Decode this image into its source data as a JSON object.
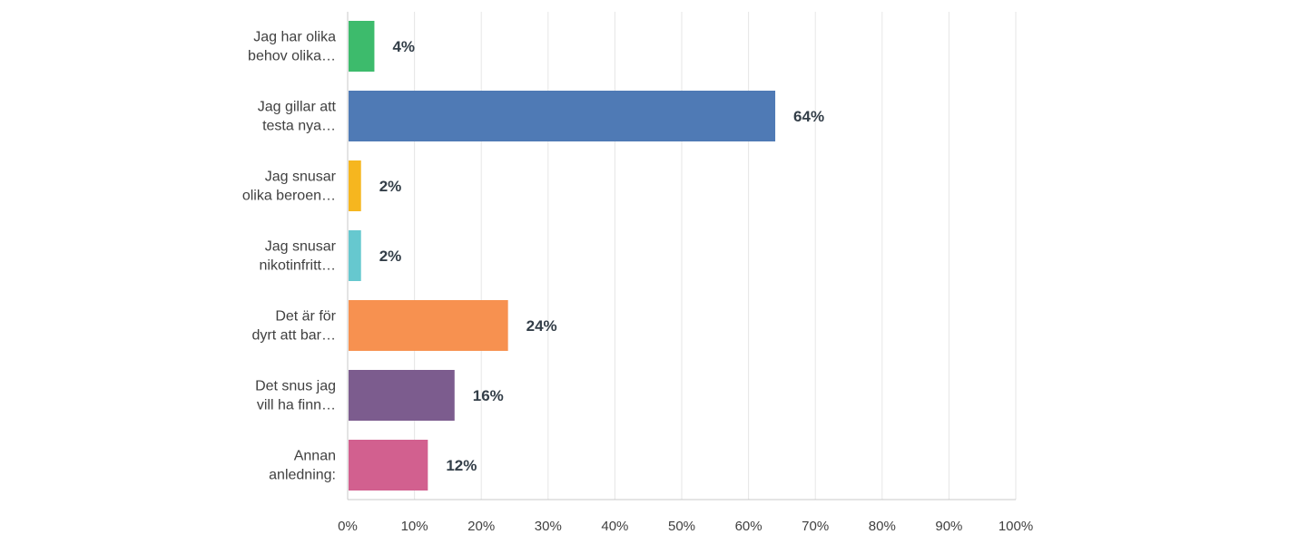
{
  "chart_data": {
    "type": "bar",
    "orientation": "horizontal",
    "categories": [
      [
        "Jag har olika",
        "behov olika…"
      ],
      [
        "Jag gillar att",
        "testa nya…"
      ],
      [
        "Jag snusar",
        "olika beroen…"
      ],
      [
        "Jag snusar",
        "nikotinfritt…"
      ],
      [
        "Det är för",
        "dyrt att bar…"
      ],
      [
        "Det snus jag",
        "vill ha finn…"
      ],
      [
        "Annan",
        "anledning:"
      ]
    ],
    "values": [
      4,
      64,
      2,
      2,
      24,
      16,
      12
    ],
    "value_labels": [
      "4%",
      "64%",
      "2%",
      "2%",
      "24%",
      "16%",
      "12%"
    ],
    "colors": [
      "#3dbb6c",
      "#4f7ab5",
      "#f6b61f",
      "#66c8cf",
      "#f79150",
      "#7c5c8e",
      "#d2608f"
    ],
    "xlim": [
      0,
      100
    ],
    "x_ticks": [
      "0%",
      "10%",
      "20%",
      "30%",
      "40%",
      "50%",
      "60%",
      "70%",
      "80%",
      "90%",
      "100%"
    ],
    "grid": true,
    "legend": "none",
    "title": "",
    "xlabel": "",
    "ylabel": ""
  }
}
